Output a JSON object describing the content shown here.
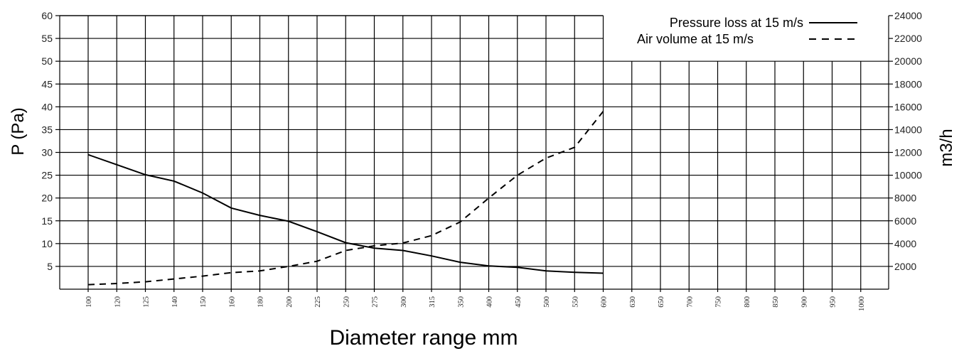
{
  "chart_data": {
    "type": "line",
    "xlabel": "Diameter range mm",
    "ylabel_left": "P (Pa)",
    "ylabel_right": "m3/h",
    "x_categories": [
      "100",
      "120",
      "125",
      "140",
      "150",
      "160",
      "180",
      "200",
      "225",
      "250",
      "275",
      "300",
      "315",
      "350",
      "400",
      "450",
      "500",
      "550",
      "600",
      "630",
      "650",
      "700",
      "750",
      "800",
      "850",
      "900",
      "950",
      "1000"
    ],
    "y_left_range": [
      0,
      60
    ],
    "y_left_ticks": [
      5,
      10,
      15,
      20,
      25,
      30,
      35,
      40,
      45,
      50,
      55,
      60
    ],
    "y_right_range": [
      0,
      24000
    ],
    "y_right_ticks": [
      2000,
      4000,
      6000,
      8000,
      10000,
      12000,
      14000,
      16000,
      18000,
      20000,
      22000,
      24000
    ],
    "grid": true,
    "legend_position": "top-right",
    "series": [
      {
        "name": "Pressure loss at 15 m/s",
        "axis": "left",
        "style": "solid",
        "values": [
          29.5,
          27.3,
          25.1,
          23.7,
          21.1,
          17.8,
          16.2,
          14.9,
          12.6,
          10.2,
          9.0,
          8.5,
          7.3,
          5.9,
          5.1,
          4.8,
          4.0,
          3.7,
          3.5
        ]
      },
      {
        "name": "Air volume at 15 m/s",
        "axis": "right",
        "style": "dashed",
        "values": [
          400,
          500,
          650,
          900,
          1150,
          1450,
          1600,
          2000,
          2450,
          3400,
          3800,
          4050,
          4700,
          5900,
          8000,
          10000,
          11500,
          12450,
          15600
        ]
      }
    ]
  }
}
